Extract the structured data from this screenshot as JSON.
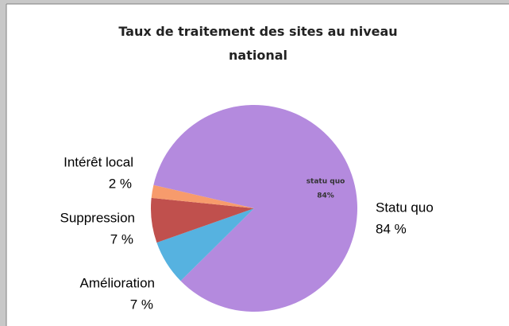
{
  "chart_data": {
    "type": "pie",
    "title": "Taux de traitement des sites au niveau national",
    "categories": [
      "Statu quo",
      "Amélioration",
      "Suppression",
      "Intérêt local"
    ],
    "values": [
      84,
      7,
      7,
      2
    ],
    "value_labels": [
      "84 %",
      "7 %",
      "7 %",
      "2 %"
    ],
    "colors": [
      "#b48ade",
      "#56b2e0",
      "#c0504d",
      "#f79b6c"
    ],
    "annotations": [
      {
        "text": "statu quo"
      },
      {
        "text": "84%"
      }
    ]
  }
}
